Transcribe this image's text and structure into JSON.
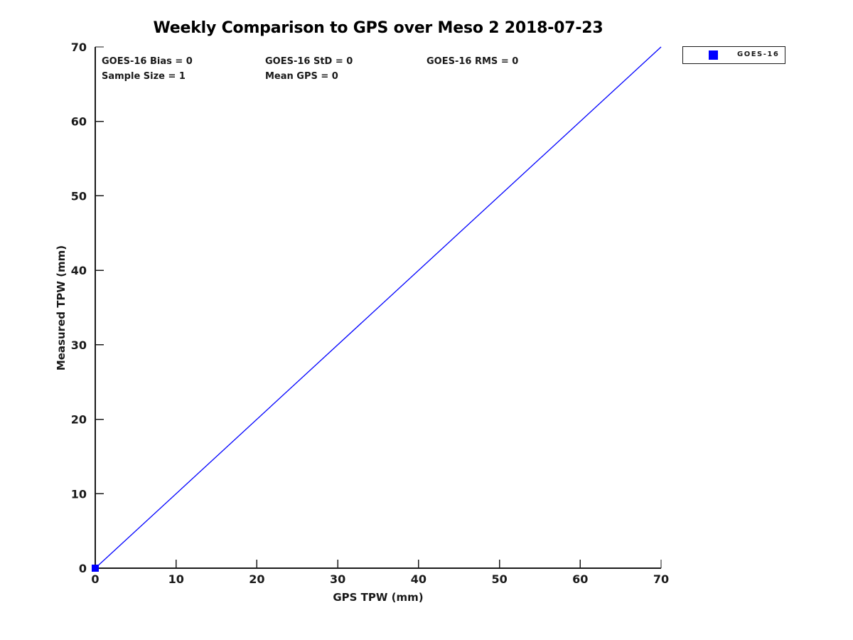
{
  "colors": {
    "series": "#0000ff",
    "axis": "#1a1a1a",
    "text": "#1a1a1a",
    "background": "#ffffff"
  },
  "chart_data": {
    "type": "scatter",
    "title": "Weekly Comparison to GPS over Meso 2 2018-07-23",
    "xlabel": "GPS TPW (mm)",
    "ylabel": "Measured TPW (mm)",
    "xlim": [
      0,
      70
    ],
    "ylim": [
      0,
      70
    ],
    "xticks": [
      0,
      10,
      20,
      30,
      40,
      50,
      60,
      70
    ],
    "yticks": [
      0,
      10,
      20,
      30,
      40,
      50,
      60,
      70
    ],
    "grid": false,
    "box": false,
    "tick_direction": "in",
    "series": [
      {
        "name": "GOES-16",
        "type": "scatter",
        "marker": "square",
        "color": "#0000ff",
        "points": [
          [
            0,
            0
          ]
        ]
      },
      {
        "name": "identity-line",
        "type": "line",
        "color": "#0000ff",
        "x": [
          0,
          70
        ],
        "y": [
          0,
          70
        ]
      }
    ],
    "legend": {
      "position": "top-right-outside",
      "entries": [
        {
          "label": "GOES-16",
          "marker": "square",
          "color": "#0000ff"
        }
      ]
    },
    "annotations": {
      "row1": [
        "GOES-16 Bias = 0",
        "GOES-16 StD = 0",
        "GOES-16 RMS = 0"
      ],
      "row2": [
        "Sample Size = 1",
        "Mean GPS = 0"
      ]
    }
  }
}
